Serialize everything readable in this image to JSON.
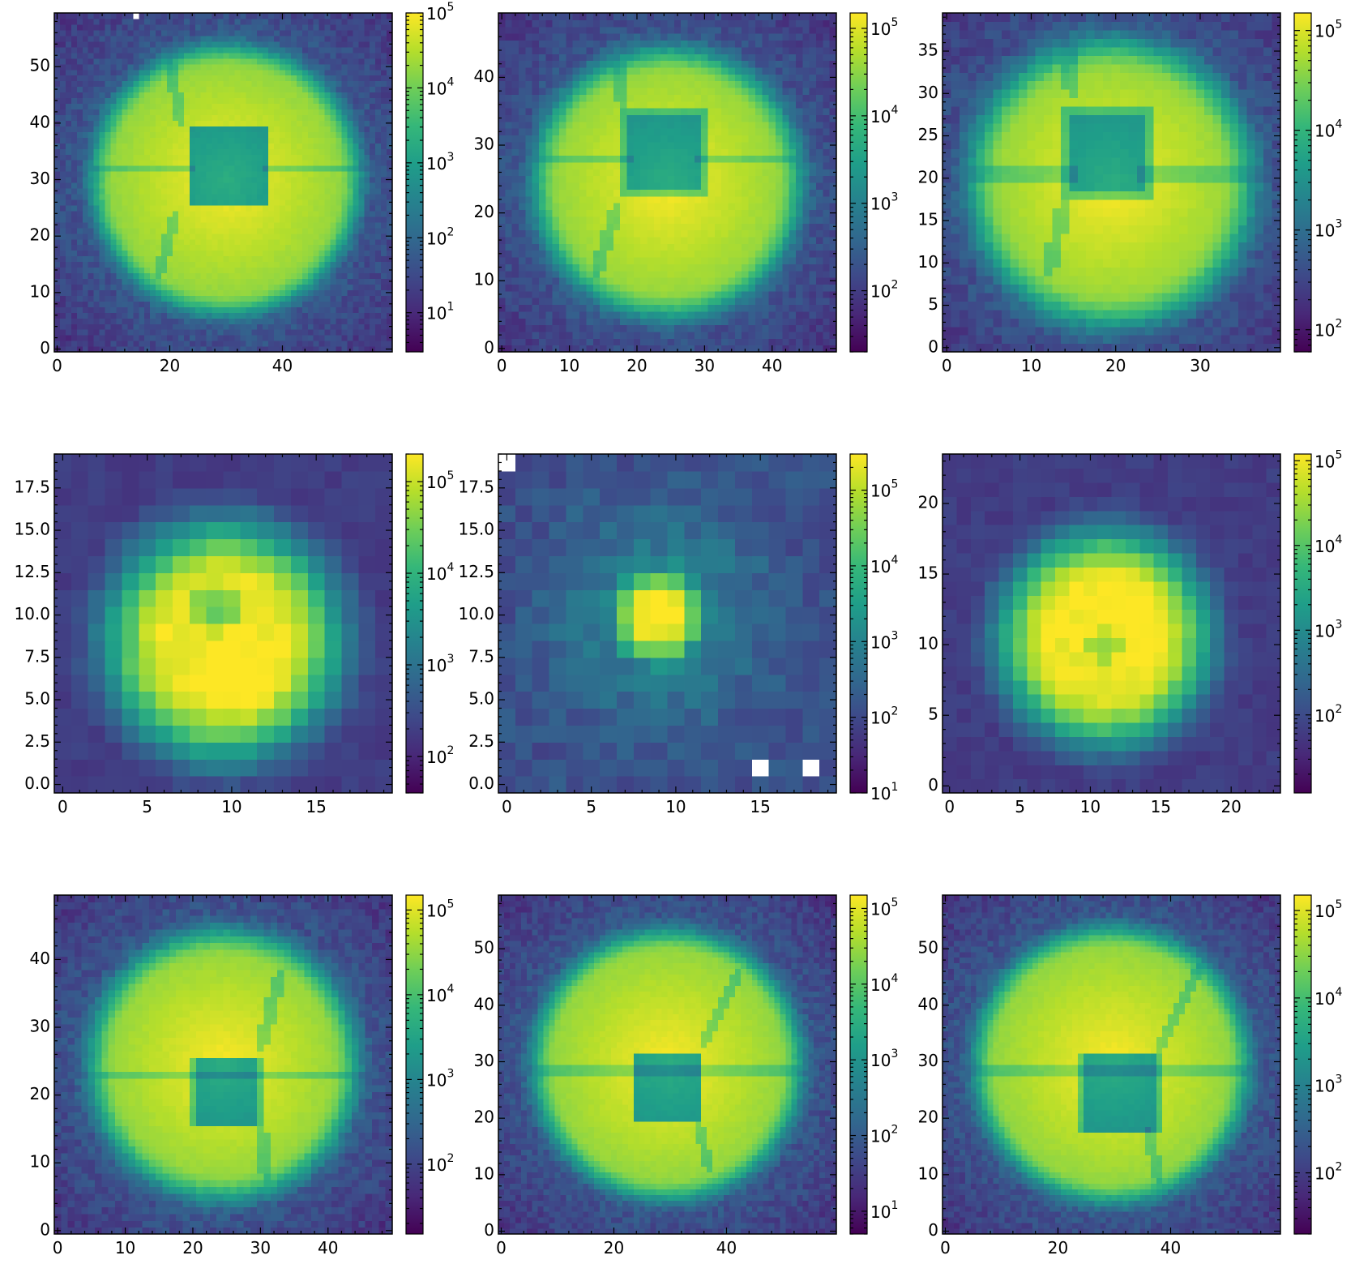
{
  "chart_data": [
    {
      "type": "heatmap",
      "row": 1,
      "col": 1,
      "size": [
        60,
        60
      ],
      "xlim": [
        0,
        59
      ],
      "ylim": [
        0,
        59
      ],
      "xticks": [
        0,
        20,
        40
      ],
      "yticks": [
        0,
        10,
        20,
        30,
        40,
        50
      ],
      "colorbar": {
        "scale": "log",
        "range": [
          3,
          100000
        ],
        "ticks": [
          {
            "base": 10,
            "exp": 1
          },
          {
            "base": 10,
            "exp": 2
          },
          {
            "base": 10,
            "exp": 3
          },
          {
            "base": 10,
            "exp": 4
          },
          {
            "base": 10,
            "exp": 5
          }
        ]
      },
      "pattern": "pupil",
      "pupil": {
        "center": [
          30,
          30
        ],
        "radius": 23.5,
        "hole_center": [
          30.5,
          32.5
        ],
        "hole_halfwidth": 6.5,
        "spider_y": 32,
        "spider_from_hole": "left",
        "strut_a": [
          [
            21,
            24
          ],
          [
            18,
            13
          ]
        ],
        "strut_b": [
          [
            22,
            40
          ],
          [
            20,
            51
          ]
        ],
        "rotation": 0
      },
      "nan_pixels": [
        [
          14,
          59
        ]
      ]
    },
    {
      "type": "heatmap",
      "row": 1,
      "col": 2,
      "size": [
        50,
        50
      ],
      "xlim": [
        0,
        49
      ],
      "ylim": [
        0,
        49
      ],
      "xticks": [
        0,
        10,
        20,
        30,
        40
      ],
      "yticks": [
        0,
        10,
        20,
        30,
        40
      ],
      "colorbar": {
        "scale": "log",
        "range": [
          20,
          150000
        ],
        "ticks": [
          {
            "base": 10,
            "exp": 2
          },
          {
            "base": 10,
            "exp": 3
          },
          {
            "base": 10,
            "exp": 4
          },
          {
            "base": 10,
            "exp": 5
          }
        ]
      },
      "pattern": "pupil",
      "pupil": {
        "center": [
          24.5,
          24.5
        ],
        "radius": 19.5,
        "hole_center": [
          24,
          29
        ],
        "hole_halfwidth": 5.5,
        "spider_y": 28,
        "spider_from_hole": "left",
        "strut_a": [
          [
            17,
            21
          ],
          [
            14,
            11
          ]
        ],
        "strut_b": [
          [
            18,
            36
          ],
          [
            17,
            43
          ]
        ],
        "rotation": 0
      },
      "nan_pixels": []
    },
    {
      "type": "heatmap",
      "row": 1,
      "col": 3,
      "size": [
        40,
        40
      ],
      "xlim": [
        0,
        39
      ],
      "ylim": [
        0,
        39
      ],
      "xticks": [
        0,
        10,
        20,
        30
      ],
      "yticks": [
        0,
        5,
        10,
        15,
        20,
        25,
        30,
        35
      ],
      "colorbar": {
        "scale": "log",
        "range": [
          60,
          150000
        ],
        "ticks": [
          {
            "base": 10,
            "exp": 2
          },
          {
            "base": 10,
            "exp": 3
          },
          {
            "base": 10,
            "exp": 4
          },
          {
            "base": 10,
            "exp": 5
          }
        ]
      },
      "pattern": "pupil",
      "pupil": {
        "center": [
          19.5,
          19.5
        ],
        "radius": 16.5,
        "hole_center": [
          19,
          23
        ],
        "hole_halfwidth": 4.5,
        "spider_y": 20.5,
        "spider_from_hole": "left",
        "strut_a": [
          [
            14,
            17
          ],
          [
            12,
            9
          ]
        ],
        "strut_b": [
          [
            15,
            30
          ],
          [
            14,
            36
          ]
        ],
        "rotation": 0
      },
      "nan_pixels": []
    },
    {
      "type": "heatmap",
      "row": 2,
      "col": 1,
      "size": [
        20,
        20
      ],
      "xlim": [
        0,
        19
      ],
      "ylim": [
        0,
        19
      ],
      "xticks": [
        0,
        5,
        10,
        15
      ],
      "yticks": [
        0.0,
        2.5,
        5.0,
        7.5,
        10.0,
        12.5,
        15.0,
        17.5
      ],
      "yticklabels": [
        "0.0",
        "2.5",
        "5.0",
        "7.5",
        "10.0",
        "12.5",
        "15.0",
        "17.5"
      ],
      "colorbar": {
        "scale": "log",
        "range": [
          40,
          200000
        ],
        "ticks": [
          {
            "base": 10,
            "exp": 2
          },
          {
            "base": 10,
            "exp": 3
          },
          {
            "base": 10,
            "exp": 4
          },
          {
            "base": 10,
            "exp": 5
          }
        ]
      },
      "pattern": "disk",
      "disk": {
        "center": [
          9.5,
          8.5
        ],
        "radius": 7.2,
        "dip_center": [
          9,
          10.5
        ],
        "dip_radius": 1.2,
        "bright_center": [
          11,
          6
        ]
      },
      "nan_pixels": []
    },
    {
      "type": "heatmap",
      "row": 2,
      "col": 2,
      "size": [
        20,
        20
      ],
      "xlim": [
        0,
        19
      ],
      "ylim": [
        0,
        19
      ],
      "xticks": [
        0,
        5,
        10,
        15
      ],
      "yticks": [
        0.0,
        2.5,
        5.0,
        7.5,
        10.0,
        12.5,
        15.0,
        17.5
      ],
      "yticklabels": [
        "0.0",
        "2.5",
        "5.0",
        "7.5",
        "10.0",
        "12.5",
        "15.0",
        "17.5"
      ],
      "colorbar": {
        "scale": "log",
        "range": [
          10,
          300000
        ],
        "ticks": [
          {
            "base": 10,
            "exp": 1
          },
          {
            "base": 10,
            "exp": 2
          },
          {
            "base": 10,
            "exp": 3
          },
          {
            "base": 10,
            "exp": 4
          },
          {
            "base": 10,
            "exp": 5
          }
        ]
      },
      "pattern": "spot",
      "spot": {
        "center": [
          9,
          10
        ],
        "radius": 2.6
      },
      "nan_pixels": [
        [
          0,
          19
        ],
        [
          15,
          1
        ],
        [
          18,
          1
        ]
      ]
    },
    {
      "type": "heatmap",
      "row": 2,
      "col": 3,
      "size": [
        24,
        24
      ],
      "xlim": [
        0,
        23
      ],
      "ylim": [
        0,
        23
      ],
      "xticks": [
        0,
        5,
        10,
        15,
        20
      ],
      "yticks": [
        0,
        5,
        10,
        15,
        20
      ],
      "colorbar": {
        "scale": "log",
        "range": [
          12,
          120000
        ],
        "ticks": [
          {
            "base": 10,
            "exp": 2
          },
          {
            "base": 10,
            "exp": 3
          },
          {
            "base": 10,
            "exp": 4
          },
          {
            "base": 10,
            "exp": 5
          }
        ]
      },
      "pattern": "disk",
      "disk": {
        "center": [
          11,
          10.5
        ],
        "radius": 7.8,
        "dip_center": [
          11,
          10
        ],
        "dip_radius": 0.9,
        "bright_center": [
          12,
          12
        ]
      },
      "nan_pixels": []
    },
    {
      "type": "heatmap",
      "row": 3,
      "col": 1,
      "size": [
        50,
        50
      ],
      "xlim": [
        0,
        49
      ],
      "ylim": [
        0,
        49
      ],
      "xticks": [
        0,
        10,
        20,
        30,
        40
      ],
      "yticks": [
        0,
        10,
        20,
        30,
        40
      ],
      "colorbar": {
        "scale": "log",
        "range": [
          15,
          150000
        ],
        "ticks": [
          {
            "base": 10,
            "exp": 2
          },
          {
            "base": 10,
            "exp": 3
          },
          {
            "base": 10,
            "exp": 4
          },
          {
            "base": 10,
            "exp": 5
          }
        ]
      },
      "pattern": "pupil",
      "pupil": {
        "center": [
          24.5,
          24.5
        ],
        "radius": 19.5,
        "hole_center": [
          25,
          20.5
        ],
        "hole_halfwidth": 4.5,
        "spider_y": 23,
        "spider_from_hole": "both",
        "strut_a": [
          [
            30,
            27
          ],
          [
            33,
            38
          ]
        ],
        "strut_b": [
          [
            30,
            15
          ],
          [
            31,
            8
          ]
        ],
        "rotation": 0
      },
      "nan_pixels": []
    },
    {
      "type": "heatmap",
      "row": 3,
      "col": 2,
      "size": [
        60,
        60
      ],
      "xlim": [
        0,
        59
      ],
      "ylim": [
        0,
        59
      ],
      "xticks": [
        0,
        20,
        40
      ],
      "yticks": [
        0,
        10,
        20,
        30,
        40,
        50
      ],
      "colorbar": {
        "scale": "log",
        "range": [
          5,
          150000
        ],
        "ticks": [
          {
            "base": 10,
            "exp": 1
          },
          {
            "base": 10,
            "exp": 2
          },
          {
            "base": 10,
            "exp": 3
          },
          {
            "base": 10,
            "exp": 4
          },
          {
            "base": 10,
            "exp": 5
          }
        ]
      },
      "pattern": "pupil",
      "pupil": {
        "center": [
          29.5,
          29.5
        ],
        "radius": 23.5,
        "hole_center": [
          29.5,
          25.5
        ],
        "hole_halfwidth": 5.5,
        "spider_y": 28.5,
        "spider_from_hole": "both",
        "strut_a": [
          [
            36,
            33
          ],
          [
            42,
            46
          ]
        ],
        "strut_b": [
          [
            35,
            19
          ],
          [
            37,
            11
          ]
        ],
        "rotation": 0
      },
      "nan_pixels": []
    },
    {
      "type": "heatmap",
      "row": 3,
      "col": 3,
      "size": [
        60,
        60
      ],
      "xlim": [
        0,
        59
      ],
      "ylim": [
        0,
        59
      ],
      "xticks": [
        0,
        20,
        40
      ],
      "yticks": [
        0,
        10,
        20,
        30,
        40,
        50
      ],
      "colorbar": {
        "scale": "log",
        "range": [
          20,
          150000
        ],
        "ticks": [
          {
            "base": 10,
            "exp": 2
          },
          {
            "base": 10,
            "exp": 3
          },
          {
            "base": 10,
            "exp": 4
          },
          {
            "base": 10,
            "exp": 5
          }
        ]
      },
      "pattern": "pupil",
      "pupil": {
        "center": [
          29.5,
          29.5
        ],
        "radius": 24,
        "hole_center": [
          31,
          24.5
        ],
        "hole_halfwidth": 6.5,
        "spider_y": 28.5,
        "spider_from_hole": "both",
        "strut_a": [
          [
            38,
            32
          ],
          [
            45,
            47
          ]
        ],
        "strut_b": [
          [
            36,
            18
          ],
          [
            38,
            9
          ]
        ],
        "rotation": 0
      },
      "nan_pixels": []
    }
  ],
  "colormap": "viridis"
}
